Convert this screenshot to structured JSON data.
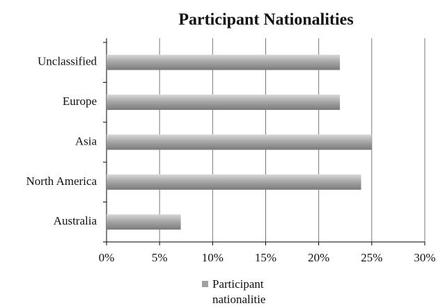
{
  "chart_data": {
    "type": "bar",
    "orientation": "horizontal",
    "title": "Participant Nationalities",
    "categories": [
      "Unclassified",
      "Europe",
      "Asia",
      "North America",
      "Australia"
    ],
    "series": [
      {
        "name": "Participant nationalitie",
        "color": "#a0a0a0",
        "values": [
          22,
          22,
          25,
          24,
          7
        ]
      }
    ],
    "xlim": [
      0,
      30
    ],
    "xticks": [
      {
        "value": 0,
        "label": "0%"
      },
      {
        "value": 5,
        "label": "5%"
      },
      {
        "value": 10,
        "label": "10%"
      },
      {
        "value": 15,
        "label": "15%"
      },
      {
        "value": 20,
        "label": "20%"
      },
      {
        "value": 25,
        "label": "25%"
      },
      {
        "value": 30,
        "label": "30%"
      }
    ],
    "grid": true,
    "legend": "bottom"
  }
}
